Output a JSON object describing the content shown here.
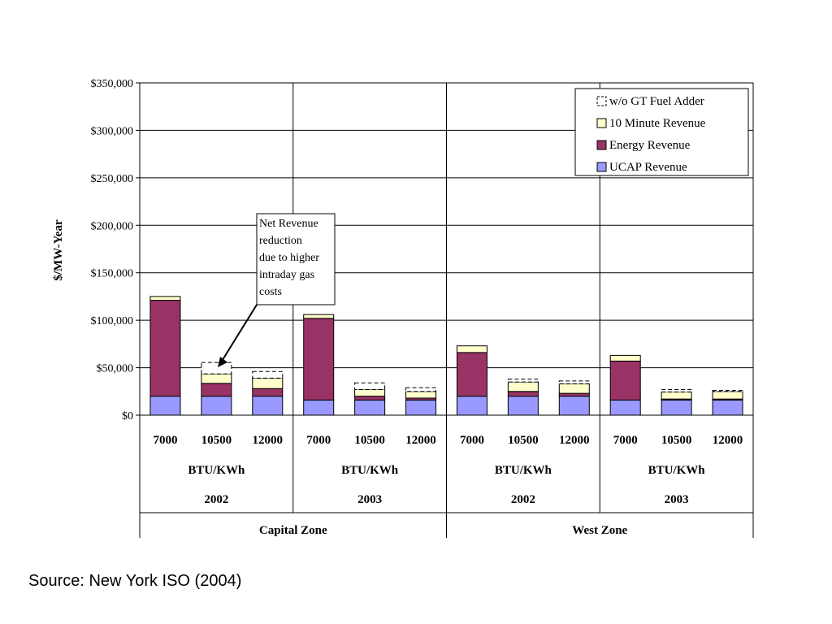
{
  "chart_data": {
    "type": "bar",
    "stacked": true,
    "ylabel": "$/MW-Year",
    "ylim": [
      0,
      350000
    ],
    "y_ticks": [
      "$0",
      "$50,000",
      "$100,000",
      "$150,000",
      "$200,000",
      "$250,000",
      "$300,000",
      "$350,000"
    ],
    "y_tick_values": [
      0,
      50000,
      100000,
      150000,
      200000,
      250000,
      300000,
      350000
    ],
    "grid": true,
    "legend_position": "top-right",
    "categories": [
      "7000",
      "10500",
      "12000",
      "7000",
      "10500",
      "12000",
      "7000",
      "10500",
      "12000",
      "7000",
      "10500",
      "12000"
    ],
    "group_levels": {
      "unit_labels": [
        "BTU/KWh",
        "BTU/KWh",
        "BTU/KWh",
        "BTU/KWh"
      ],
      "years": [
        "2002",
        "2003",
        "2002",
        "2003"
      ],
      "zones": [
        "Capital Zone",
        "West Zone"
      ]
    },
    "series": [
      {
        "name": "UCAP Revenue",
        "color": "#9999ff",
        "values": [
          20000,
          20000,
          20000,
          16000,
          16000,
          16000,
          20000,
          20000,
          20000,
          16000,
          16000,
          16000
        ]
      },
      {
        "name": "Energy Revenue",
        "color": "#993366",
        "values": [
          101000,
          13500,
          8000,
          86000,
          4000,
          2000,
          46000,
          5000,
          3000,
          41000,
          1000,
          1000
        ]
      },
      {
        "name": "10 Minute Revenue",
        "color": "#ffffcc",
        "values": [
          4000,
          10000,
          11000,
          4000,
          7000,
          7000,
          7000,
          10000,
          10000,
          6000,
          7500,
          8000
        ]
      },
      {
        "name": "w/o GT Fuel Adder",
        "color": "#ffffff",
        "style": "dashed",
        "values": [
          0,
          12000,
          7000,
          0,
          7000,
          4000,
          0,
          3000,
          3000,
          0,
          2500,
          1000
        ]
      }
    ],
    "annotation": {
      "lines": [
        "Net Revenue",
        "reduction",
        "due to higher",
        "intraday gas",
        "costs"
      ]
    }
  },
  "source_text": "Source: New York ISO (2004)"
}
